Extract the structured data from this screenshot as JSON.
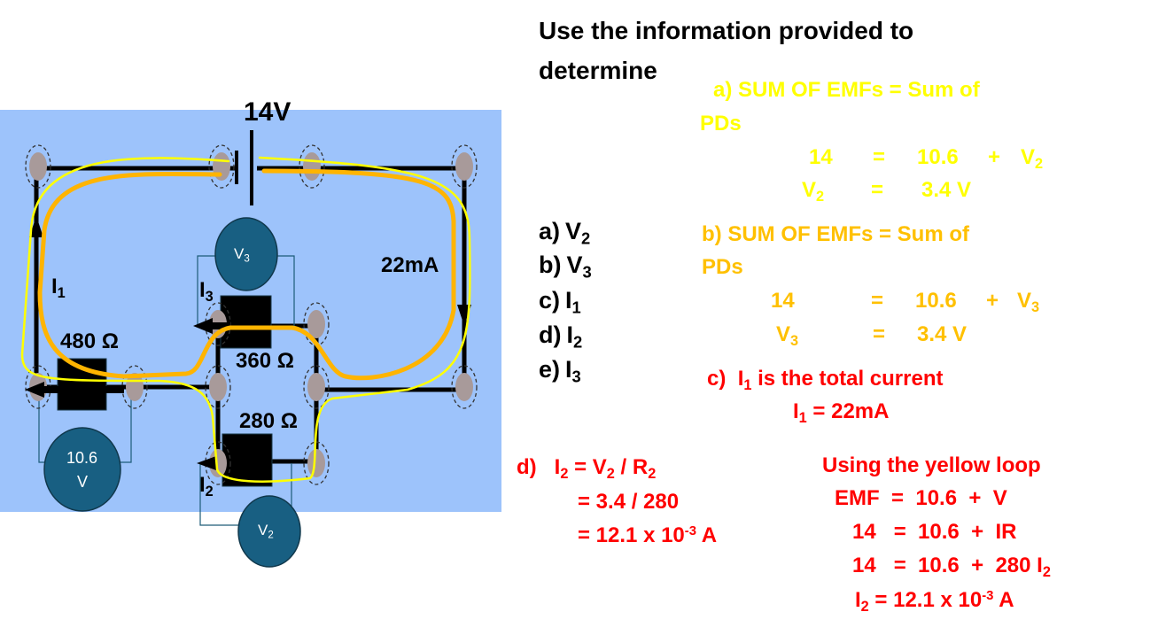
{
  "colors": {
    "background_panel": "#9dc3fb",
    "yellow_loop": "#ffff00",
    "orange_loop": "#ffb400",
    "text_yellow": "#ffff00",
    "text_orange": "#ffc000",
    "text_red": "#ff0000",
    "meter": "#185f82"
  },
  "circuit": {
    "battery_label": "14V",
    "current_label": "22mA",
    "i1": {
      "t": "I",
      "s": "1"
    },
    "i2": {
      "t": "I",
      "s": "2"
    },
    "i3": {
      "t": "I",
      "s": "3"
    },
    "r1": "480 Ω",
    "r2": "280 Ω",
    "r3": "360 Ω",
    "meter_v3": {
      "t": "V",
      "s": "3"
    },
    "meter_v2": {
      "t": "V",
      "s": "2"
    },
    "meter_v1": {
      "line1": "10.6",
      "line2": "V"
    }
  },
  "question": {
    "line1": "Use the information provided to",
    "line2": "determine",
    "items": [
      {
        "p": "a)",
        "t": "V",
        "s": "2"
      },
      {
        "p": "b)",
        "t": "V",
        "s": "3"
      },
      {
        "p": "c)",
        "t": "I",
        "s": "1"
      },
      {
        "p": "d)",
        "t": "I",
        "s": "2"
      },
      {
        "p": "e)",
        "t": "I",
        "s": "3"
      }
    ]
  },
  "answer_a": {
    "line1": "a) SUM OF EMFs = Sum of",
    "line2": "PDs",
    "eq1": {
      "lhs": "14",
      "eq": "=",
      "a": "10.6",
      "plus": "+",
      "v": "V",
      "s": "2"
    },
    "eq2": {
      "v": "V",
      "s": "2",
      "eq": "=",
      "rhs": "3.4 V"
    }
  },
  "answer_b": {
    "line1": "b)  SUM OF EMFs = Sum of",
    "line2": "PDs",
    "eq1": {
      "lhs": "14",
      "eq": "=",
      "a": "10.6",
      "plus": "+",
      "v": "V",
      "s": "3"
    },
    "eq2": {
      "v": "V",
      "s": "3",
      "eq": "=",
      "rhs": "3.4 V"
    }
  },
  "answer_c": {
    "prefix": "c)",
    "i": "I",
    "s": "1",
    "rest": " is the total current",
    "line2": {
      "i": "I",
      "s": "1",
      "rest": " = 22mA"
    }
  },
  "answer_d": {
    "line1": {
      "prefix": "d)",
      "i": "I",
      "s": "2",
      "mid": " = V",
      "s2": "2",
      "mid2": " / R",
      "s3": "2"
    },
    "line2": "= 3.4 / 280",
    "line3": {
      "a": "= 12.1 x 10",
      "sup": "-3",
      "b": " A"
    }
  },
  "answer_e": {
    "title": "Using the yellow loop",
    "line1": "EMF  =  10.6  +  V",
    "line2": "14   =  10.6  +  IR",
    "line3": {
      "a": "14   =  10.6  +  280 I",
      "s": "2"
    },
    "line4": {
      "i": "I",
      "s": "2",
      "a": " = 12.1 x 10",
      "sup": "-3",
      "b": " A"
    }
  }
}
